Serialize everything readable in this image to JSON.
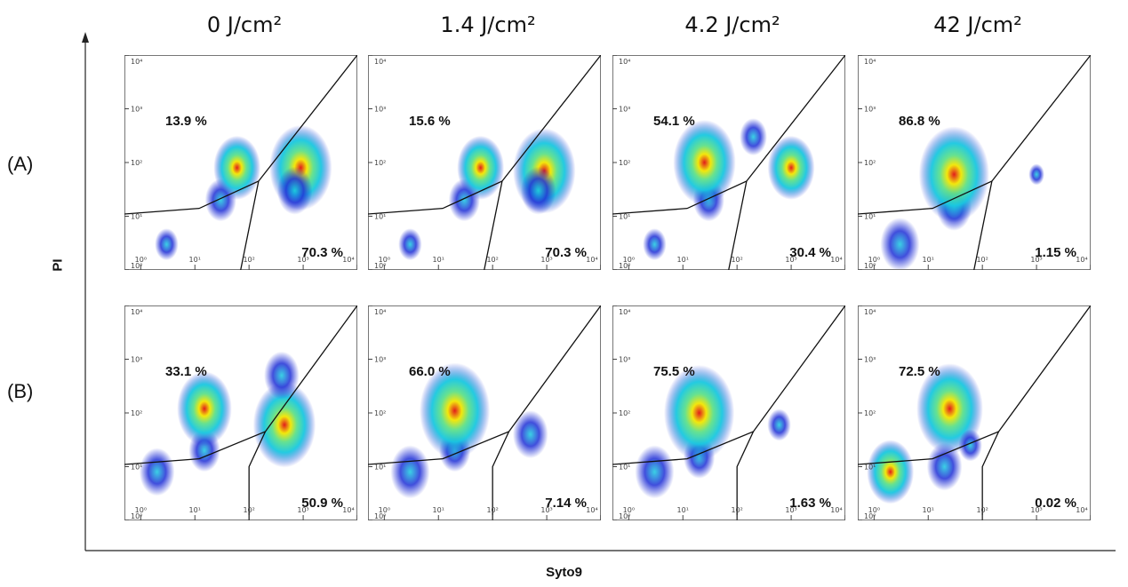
{
  "figure": {
    "column_titles": [
      "0 J/cm²",
      "1.4 J/cm²",
      "4.2 J/cm²",
      "42 J/cm²"
    ],
    "row_labels": [
      "(A)",
      "(B)"
    ],
    "y_axis_label": "PI",
    "x_axis_label": "Syto9"
  },
  "chart_data": {
    "type": "scatter",
    "subtype": "flow-cytometry density scatter grid",
    "xlabel": "Syto9",
    "ylabel": "PI",
    "x_scale": "log",
    "y_scale": "log",
    "xlim": [
      0.5,
      10000
    ],
    "ylim": [
      1,
      10000
    ],
    "x_ticks": [
      "10⁰",
      "10¹",
      "10²",
      "10³",
      "10⁴"
    ],
    "y_ticks": [
      "10⁰",
      "10¹",
      "10²",
      "10³",
      "10⁴"
    ],
    "columns": [
      "0 J/cm²",
      "1.4 J/cm²",
      "4.2 J/cm²",
      "42 J/cm²"
    ],
    "rows": [
      "(A)",
      "(B)"
    ],
    "panels": [
      {
        "row": "(A)",
        "column": "0 J/cm²",
        "upper_left": "13.9 %",
        "lower_right": "70.3 %"
      },
      {
        "row": "(A)",
        "column": "1.4 J/cm²",
        "upper_left": "15.6 %",
        "lower_right": "70.3 %"
      },
      {
        "row": "(A)",
        "column": "4.2 J/cm²",
        "upper_left": "54.1 %",
        "lower_right": "30.4 %"
      },
      {
        "row": "(A)",
        "column": "42 J/cm²",
        "upper_left": "86.8 %",
        "lower_right": "1.15 %"
      },
      {
        "row": "(B)",
        "column": "0 J/cm²",
        "upper_left": "33.1 %",
        "lower_right": "50.9 %"
      },
      {
        "row": "(B)",
        "column": "1.4 J/cm²",
        "upper_left": "66.0 %",
        "lower_right": "7.14 %"
      },
      {
        "row": "(B)",
        "column": "4.2 J/cm²",
        "upper_left": "75.5 %",
        "lower_right": "1.63 %"
      },
      {
        "row": "(B)",
        "column": "42 J/cm²",
        "upper_left": "72.5 %",
        "lower_right": "0.02 %"
      }
    ],
    "colors": {
      "low_density": "#1f2fd6",
      "mid_density": "#18c8e0",
      "high_density": "#f2e600",
      "peak_density": "#e01010"
    }
  }
}
